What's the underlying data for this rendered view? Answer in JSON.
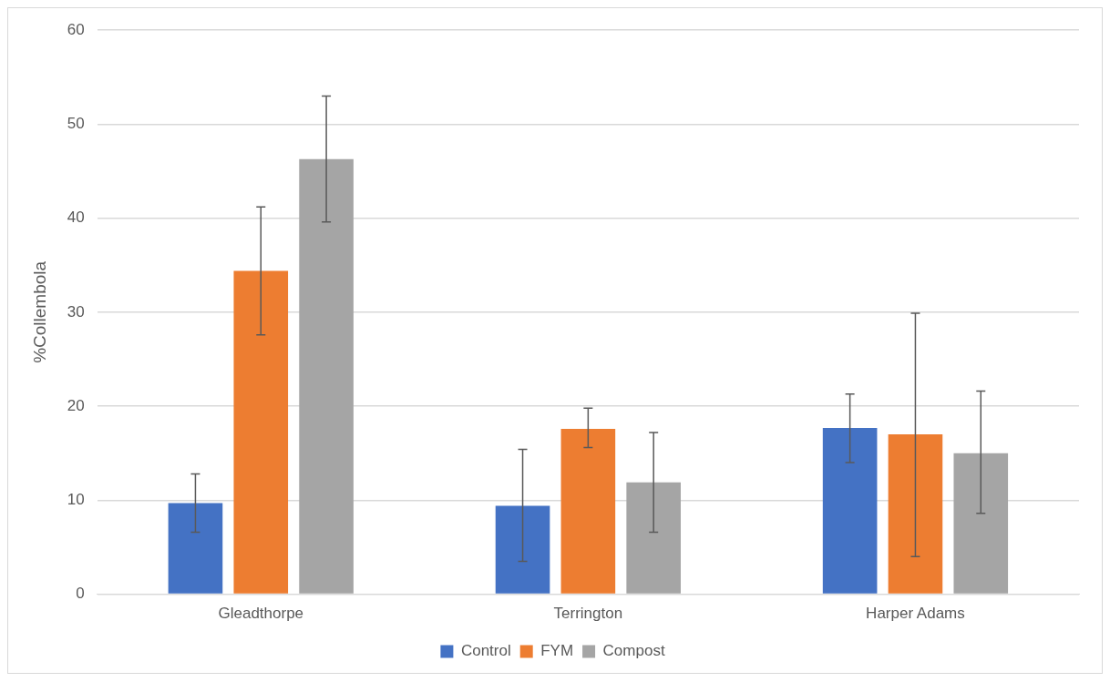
{
  "chart_data": {
    "type": "bar",
    "ylabel": "%Collembola",
    "categories": [
      "Gleadthorpe",
      "Terrington",
      "Harper Adams"
    ],
    "series": [
      {
        "name": "Control",
        "color": "#4472c4",
        "values": [
          9.7,
          9.4,
          17.7
        ],
        "errors": [
          [
            6.6,
            12.8
          ],
          [
            3.5,
            15.4
          ],
          [
            14.0,
            21.3
          ]
        ]
      },
      {
        "name": "FYM",
        "color": "#ed7d31",
        "values": [
          34.4,
          17.6,
          17.0
        ],
        "errors": [
          [
            27.6,
            41.2
          ],
          [
            15.6,
            19.8
          ],
          [
            4.0,
            29.9
          ]
        ]
      },
      {
        "name": "Compost",
        "color": "#a5a5a5",
        "values": [
          46.3,
          11.9,
          15.0
        ],
        "errors": [
          [
            39.6,
            53.0
          ],
          [
            6.6,
            17.2
          ],
          [
            8.6,
            21.6
          ]
        ]
      }
    ],
    "ylim": [
      0,
      60
    ],
    "yticks": [
      0,
      10,
      20,
      30,
      40,
      50,
      60
    ],
    "grid": "y",
    "legend": "bottom"
  }
}
